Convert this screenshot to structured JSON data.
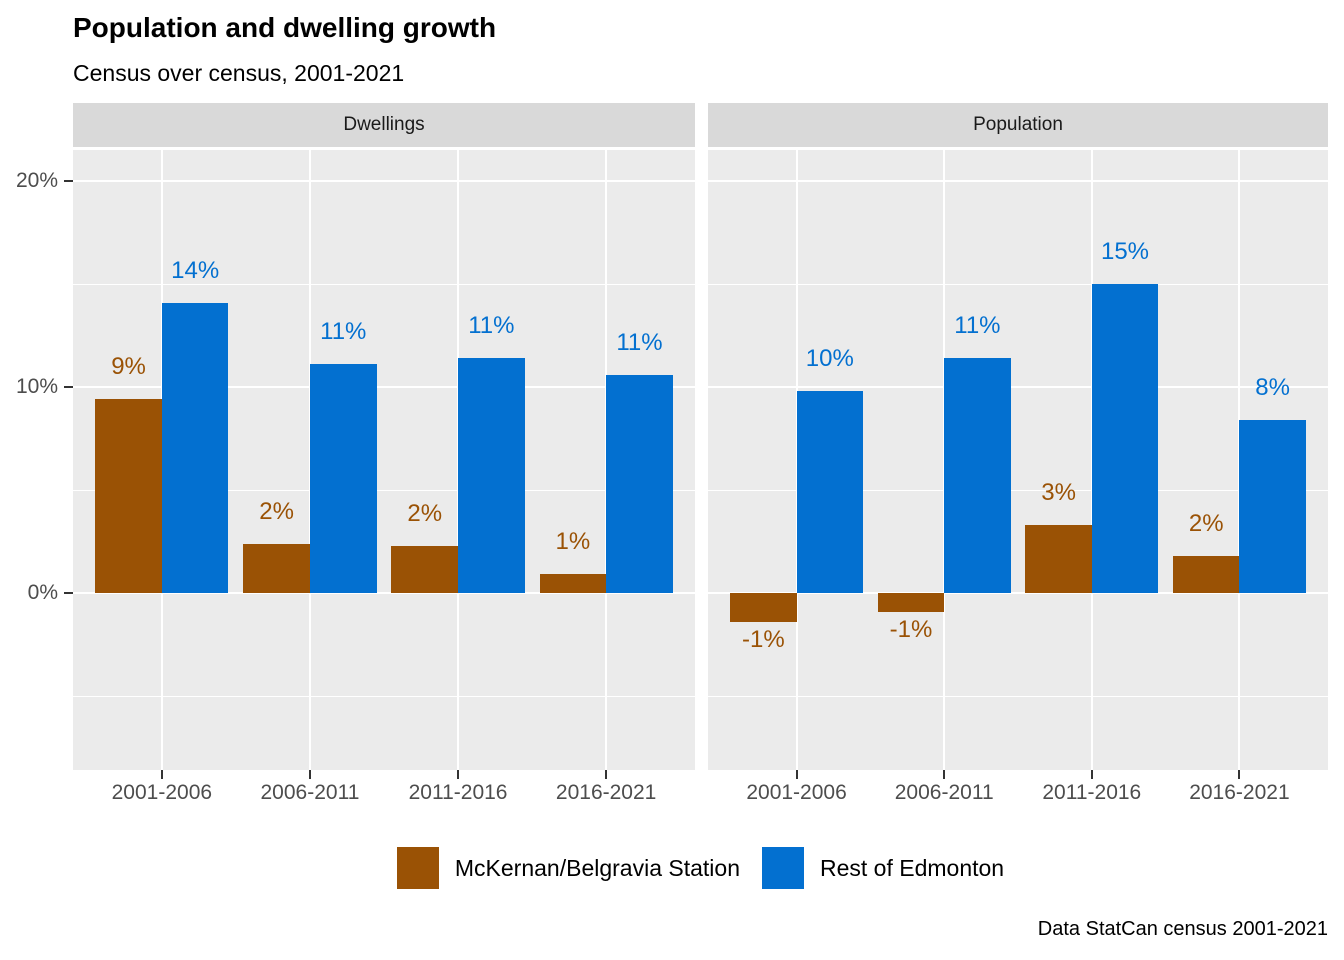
{
  "chart_data": {
    "type": "bar",
    "title": "Population and dwelling growth",
    "subtitle": "Census over census, 2001-2021",
    "caption": "Data StatCan census 2001-2021",
    "categories": [
      "2001-2006",
      "2006-2011",
      "2011-2016",
      "2016-2021"
    ],
    "y_axis": {
      "ticks": [
        {
          "value": 0,
          "label": "0%"
        },
        {
          "value": 10,
          "label": "10%"
        },
        {
          "value": 20,
          "label": "20%"
        }
      ],
      "minor_ticks": [
        -5,
        5,
        15
      ],
      "range": [
        -8.6,
        21.5
      ],
      "grid": true
    },
    "legend_position": "bottom",
    "legend": [
      {
        "label": "McKernan/Belgravia Station",
        "color": "#9a5205"
      },
      {
        "label": "Rest of Edmonton",
        "color": "#0370d0"
      }
    ],
    "facets": [
      {
        "label": "Dwellings",
        "series": [
          {
            "name": "McKernan/Belgravia Station",
            "color": "#9a5205",
            "values": [
              9.4,
              2.4,
              2.3,
              0.9
            ],
            "labels": [
              "9%",
              "2%",
              "2%",
              "1%"
            ]
          },
          {
            "name": "Rest of Edmonton",
            "color": "#0370d0",
            "values": [
              14.1,
              11.1,
              11.4,
              10.6
            ],
            "labels": [
              "14%",
              "11%",
              "11%",
              "11%"
            ]
          }
        ]
      },
      {
        "label": "Population",
        "series": [
          {
            "name": "McKernan/Belgravia Station",
            "color": "#9a5205",
            "values": [
              -1.4,
              -0.9,
              3.3,
              1.8
            ],
            "labels": [
              "-1%",
              "-1%",
              "3%",
              "2%"
            ]
          },
          {
            "name": "Rest of Edmonton",
            "color": "#0370d0",
            "values": [
              9.8,
              11.4,
              15.0,
              8.4
            ],
            "labels": [
              "10%",
              "11%",
              "15%",
              "8%"
            ]
          }
        ]
      }
    ]
  }
}
